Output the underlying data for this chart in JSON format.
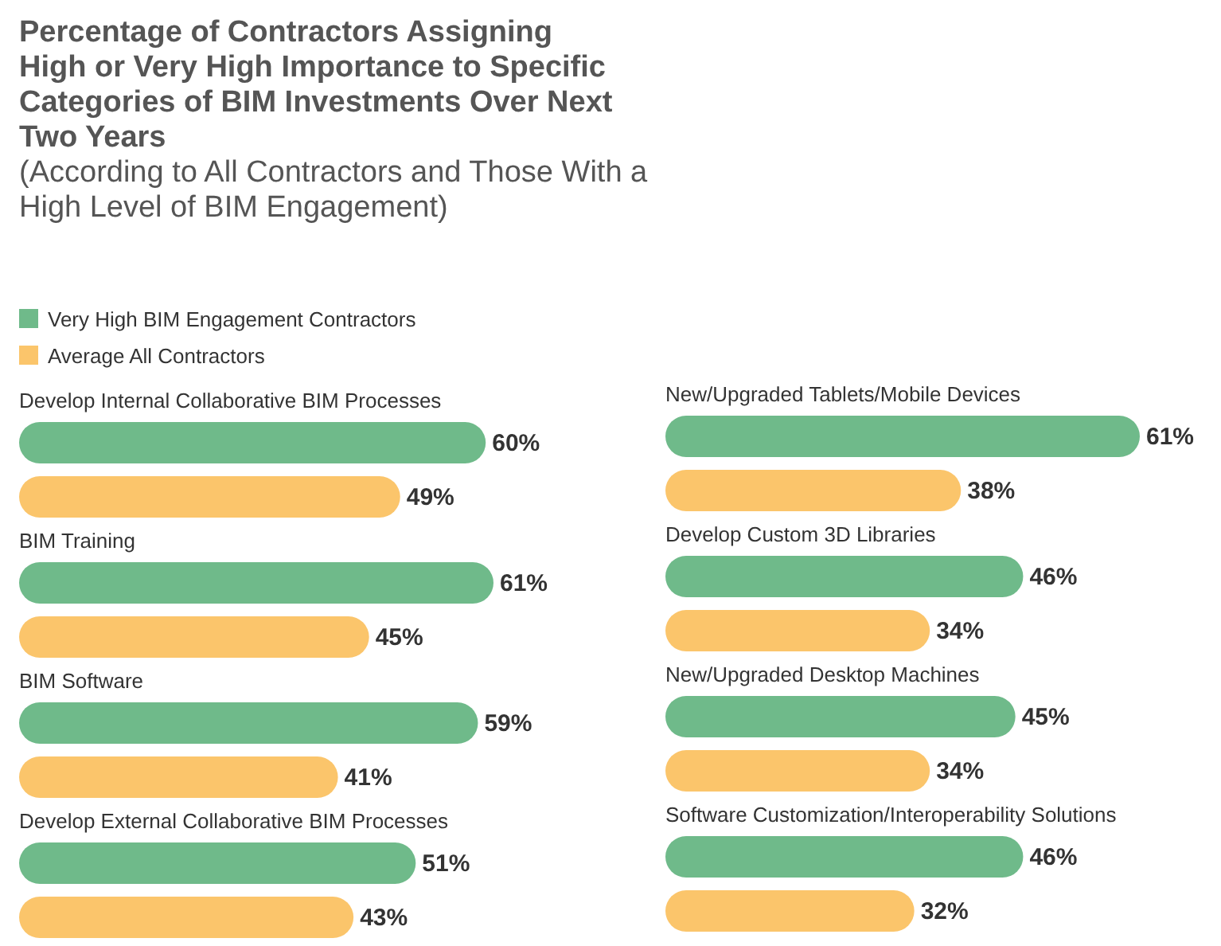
{
  "chart_data": [
    {
      "type": "bar",
      "orientation": "horizontal",
      "title": "Percentage of Contractors Assigning\nHigh or Very High Importance to Specific\nCategories of BIM Investments Over Next\nTwo Years",
      "subtitle": "(According to All Contractors and Those With a\nHigh Level of BIM Engagement)",
      "legend": "top left",
      "categories": [
        "Develop Internal Collaborative BIM Processes",
        "BIM Training",
        "BIM Software",
        "Develop External Collaborative BIM Processes"
      ],
      "series": [
        {
          "name": "Very High BIM Engagement Contractors",
          "color": "#6fba8a",
          "values": [
            60,
            61,
            59,
            51
          ],
          "value_labels": [
            "60%",
            "61%",
            "59%",
            "51%"
          ]
        },
        {
          "name": "Average All Contractors",
          "color": "#fbc56b",
          "values": [
            49,
            45,
            41,
            43
          ],
          "value_labels": [
            "49%",
            "45%",
            "41%",
            "43%"
          ]
        }
      ]
    },
    {
      "type": "bar",
      "orientation": "horizontal",
      "categories": [
        "New/Upgraded Tablets/Mobile Devices",
        "Develop Custom 3D Libraries",
        "New/Upgraded Desktop Machines",
        "Software Customization/Interoperability Solutions"
      ],
      "series": [
        {
          "color": "#6fba8a",
          "values": [
            61,
            46,
            45,
            46
          ],
          "value_labels": [
            "61%",
            "46%",
            "45%",
            "46%"
          ]
        },
        {
          "color": "#fbc56b",
          "values": [
            38,
            34,
            34,
            32
          ],
          "value_labels": [
            "38%",
            "34%",
            "34%",
            "32%"
          ]
        }
      ]
    }
  ]
}
